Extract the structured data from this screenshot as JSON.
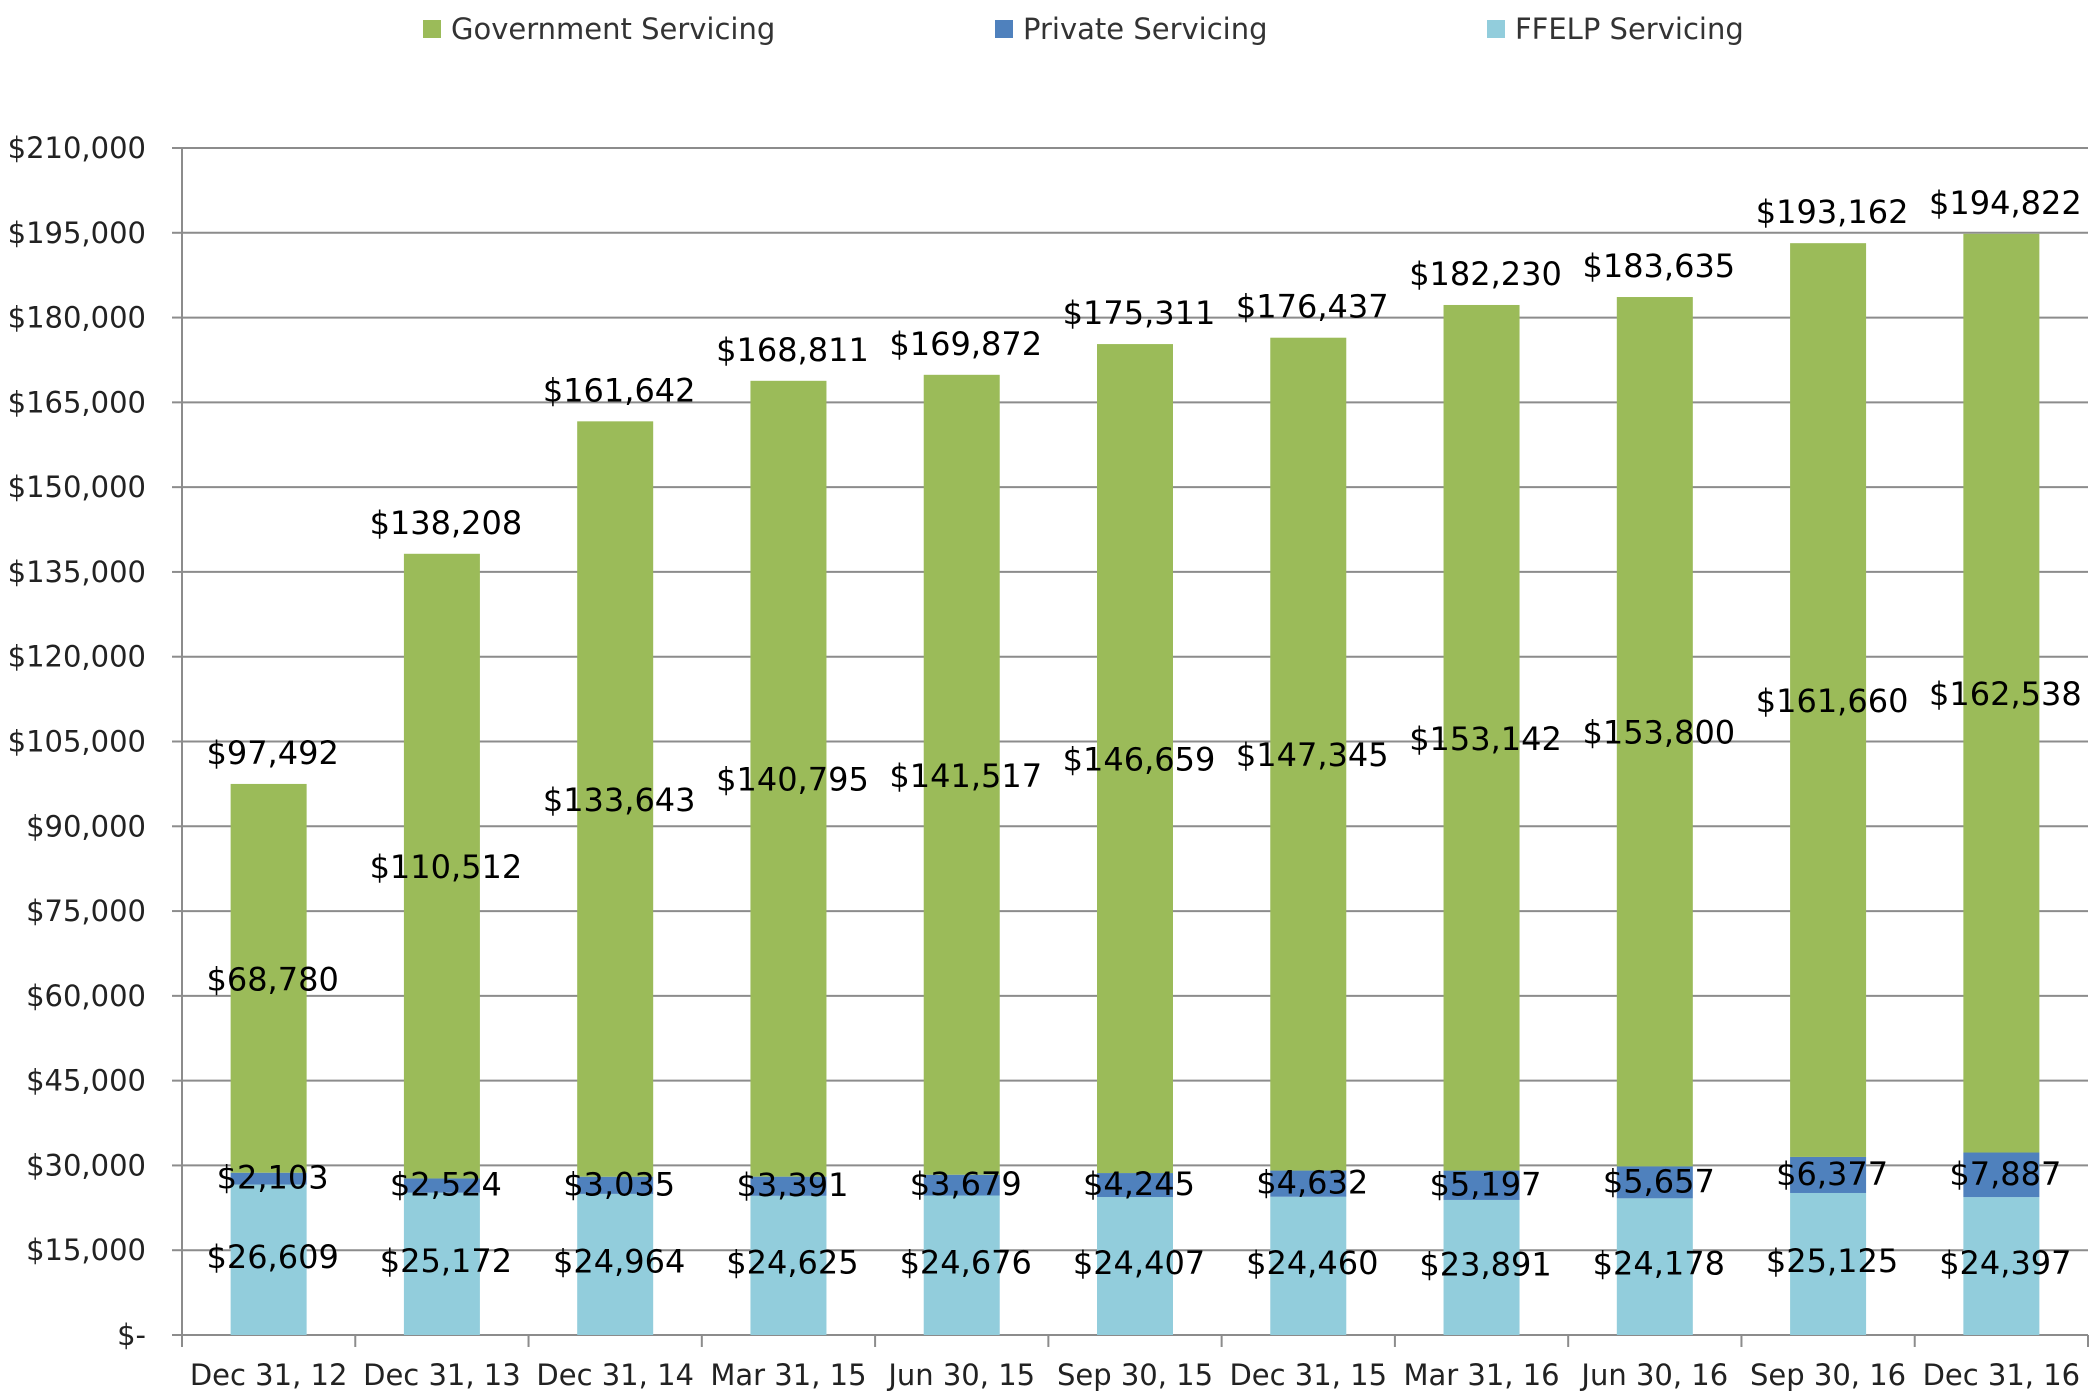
{
  "chart_data": {
    "type": "bar",
    "stacked": true,
    "title": "",
    "xlabel": "",
    "ylabel": "",
    "ylim": [
      0,
      210000
    ],
    "ytick_step": 15000,
    "grid": true,
    "legend_position": "top",
    "categories": [
      "Dec 31, 12",
      "Dec 31, 13",
      "Dec 31, 14",
      "Mar 31, 15",
      "Jun 30, 15",
      "Sep 30, 15",
      "Dec 31, 15",
      "Mar 31, 16",
      "Jun 30, 16",
      "Sep 30, 16",
      "Dec 31, 16"
    ],
    "y_tick_labels": [
      "$-",
      "$15,000",
      "$30,000",
      "$45,000",
      "$60,000",
      "$75,000",
      "$90,000",
      "$105,000",
      "$120,000",
      "$135,000",
      "$150,000",
      "$165,000",
      "$180,000",
      "$195,000",
      "$210,000"
    ],
    "series": [
      {
        "name": "FFELP Servicing",
        "color": "#92cddc",
        "values": [
          26609,
          25172,
          24964,
          24625,
          24676,
          24407,
          24460,
          23891,
          24178,
          25125,
          24397
        ],
        "labels": [
          "$26,609",
          "$25,172",
          "$24,964",
          "$24,625",
          "$24,676",
          "$24,407",
          "$24,460",
          "$23,891",
          "$24,178",
          "$25,125",
          "$24,397"
        ]
      },
      {
        "name": "Private Servicing",
        "color": "#4f81bd",
        "values": [
          2103,
          2524,
          3035,
          3391,
          3679,
          4245,
          4632,
          5197,
          5657,
          6377,
          7887
        ],
        "labels": [
          "$2,103",
          "$2,524",
          "$3,035",
          "$3,391",
          "$3,679",
          "$4,245",
          "$4,632",
          "$5,197",
          "$5,657",
          "$6,377",
          "$7,887"
        ]
      },
      {
        "name": "Government Servicing",
        "color": "#9bbb59",
        "values": [
          68780,
          110512,
          133643,
          140795,
          141517,
          146659,
          147345,
          153142,
          153800,
          161660,
          162538
        ],
        "labels": [
          "$68,780",
          "$110,512",
          "$133,643",
          "$140,795",
          "$141,517",
          "$146,659",
          "$147,345",
          "$153,142",
          "$153,800",
          "$161,660",
          "$162,538"
        ]
      }
    ],
    "totals": [
      97492,
      138208,
      161642,
      168811,
      169872,
      175311,
      176437,
      182230,
      183635,
      193162,
      194822
    ],
    "total_labels": [
      "$97,492",
      "$138,208",
      "$161,642",
      "$168,811",
      "$169,872",
      "$175,311",
      "$176,437",
      "$182,230",
      "$183,635",
      "$193,162",
      "$194,822"
    ],
    "legend": [
      {
        "name": "Government Servicing",
        "color": "#9bbb59"
      },
      {
        "name": "Private Servicing",
        "color": "#4f81bd"
      },
      {
        "name": "FFELP Servicing",
        "color": "#92cddc"
      }
    ]
  }
}
